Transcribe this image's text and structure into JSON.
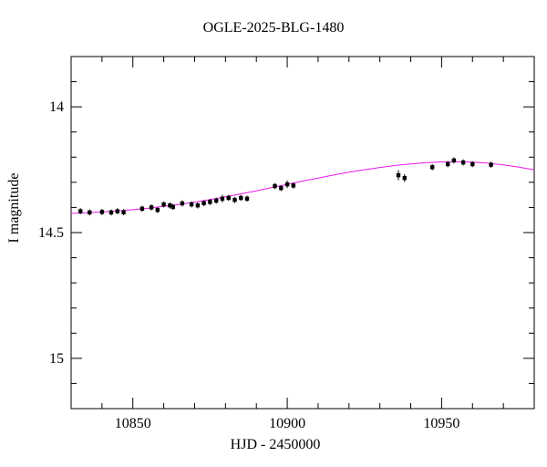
{
  "chart_data": {
    "type": "scatter",
    "title": "OGLE-2025-BLG-1480",
    "xlabel": "HJD - 2450000",
    "ylabel": "I magnitude",
    "xlim": [
      10830,
      10980
    ],
    "ylim": [
      13.8,
      15.2
    ],
    "y_axis_inverted": true,
    "grid": false,
    "legend": "none",
    "point_color": "#000000",
    "curve_color": "#e818e8",
    "frame_color": "#000000",
    "background_color": "#ffffff",
    "x_minor_step": 10,
    "y_minor_step": 0.1,
    "x_major_ticks": [
      {
        "value": 10850,
        "label": "10850"
      },
      {
        "value": 10900,
        "label": "10900"
      },
      {
        "value": 10950,
        "label": "10950"
      }
    ],
    "y_major_ticks": [
      {
        "value": 14,
        "label": "14"
      },
      {
        "value": 14.5,
        "label": "14.5"
      },
      {
        "value": 15,
        "label": "15"
      }
    ],
    "points": [
      {
        "x": 10833,
        "y": 14.415,
        "err": 0.012
      },
      {
        "x": 10836,
        "y": 14.42,
        "err": 0.012
      },
      {
        "x": 10840,
        "y": 14.418,
        "err": 0.012
      },
      {
        "x": 10843,
        "y": 14.42,
        "err": 0.012
      },
      {
        "x": 10845,
        "y": 14.415,
        "err": 0.012
      },
      {
        "x": 10847,
        "y": 14.419,
        "err": 0.012
      },
      {
        "x": 10853,
        "y": 14.405,
        "err": 0.012
      },
      {
        "x": 10856,
        "y": 14.4,
        "err": 0.012
      },
      {
        "x": 10858,
        "y": 14.41,
        "err": 0.012
      },
      {
        "x": 10860,
        "y": 14.388,
        "err": 0.012
      },
      {
        "x": 10862,
        "y": 14.392,
        "err": 0.012
      },
      {
        "x": 10863,
        "y": 14.398,
        "err": 0.012
      },
      {
        "x": 10866,
        "y": 14.384,
        "err": 0.012
      },
      {
        "x": 10869,
        "y": 14.388,
        "err": 0.012
      },
      {
        "x": 10871,
        "y": 14.392,
        "err": 0.012
      },
      {
        "x": 10873,
        "y": 14.383,
        "err": 0.012
      },
      {
        "x": 10875,
        "y": 14.378,
        "err": 0.012
      },
      {
        "x": 10877,
        "y": 14.373,
        "err": 0.012
      },
      {
        "x": 10879,
        "y": 14.365,
        "err": 0.015
      },
      {
        "x": 10881,
        "y": 14.362,
        "err": 0.012
      },
      {
        "x": 10883,
        "y": 14.37,
        "err": 0.012
      },
      {
        "x": 10885,
        "y": 14.362,
        "err": 0.012
      },
      {
        "x": 10887,
        "y": 14.365,
        "err": 0.012
      },
      {
        "x": 10896,
        "y": 14.315,
        "err": 0.012
      },
      {
        "x": 10898,
        "y": 14.323,
        "err": 0.012
      },
      {
        "x": 10900,
        "y": 14.308,
        "err": 0.015
      },
      {
        "x": 10902,
        "y": 14.313,
        "err": 0.012
      },
      {
        "x": 10936,
        "y": 14.272,
        "err": 0.02
      },
      {
        "x": 10938,
        "y": 14.283,
        "err": 0.015
      },
      {
        "x": 10947,
        "y": 14.24,
        "err": 0.012
      },
      {
        "x": 10952,
        "y": 14.228,
        "err": 0.012
      },
      {
        "x": 10954,
        "y": 14.213,
        "err": 0.012
      },
      {
        "x": 10957,
        "y": 14.221,
        "err": 0.012
      },
      {
        "x": 10960,
        "y": 14.228,
        "err": 0.012
      },
      {
        "x": 10966,
        "y": 14.23,
        "err": 0.012
      }
    ],
    "model_curve": [
      [
        10830,
        14.424
      ],
      [
        10835,
        14.421
      ],
      [
        10840,
        14.418
      ],
      [
        10845,
        14.414
      ],
      [
        10850,
        14.409
      ],
      [
        10855,
        14.403
      ],
      [
        10860,
        14.396
      ],
      [
        10865,
        14.388
      ],
      [
        10870,
        14.379
      ],
      [
        10875,
        14.369
      ],
      [
        10880,
        14.358
      ],
      [
        10885,
        14.346
      ],
      [
        10890,
        14.334
      ],
      [
        10895,
        14.321
      ],
      [
        10900,
        14.308
      ],
      [
        10905,
        14.295
      ],
      [
        10910,
        14.283
      ],
      [
        10915,
        14.271
      ],
      [
        10920,
        14.26
      ],
      [
        10925,
        14.25
      ],
      [
        10930,
        14.241
      ],
      [
        10935,
        14.233
      ],
      [
        10940,
        14.227
      ],
      [
        10945,
        14.222
      ],
      [
        10950,
        14.219
      ],
      [
        10955,
        14.218
      ],
      [
        10960,
        14.22
      ],
      [
        10965,
        14.224
      ],
      [
        10970,
        14.231
      ],
      [
        10975,
        14.24
      ],
      [
        10980,
        14.25
      ]
    ]
  }
}
